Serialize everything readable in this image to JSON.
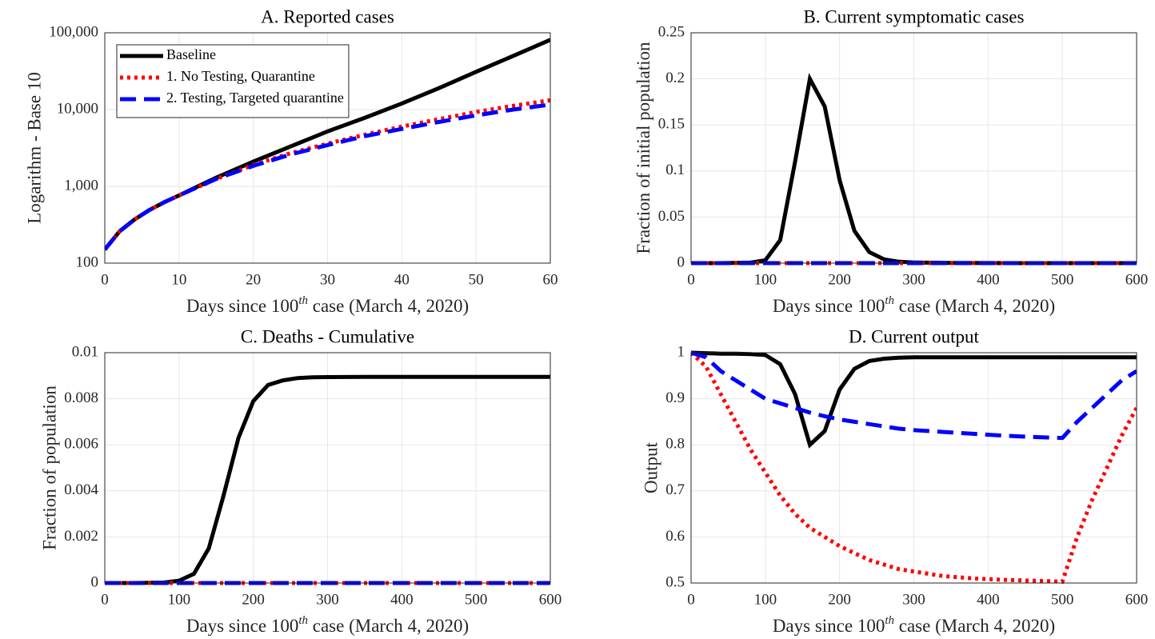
{
  "chart_data": [
    {
      "type": "line",
      "title": "A. Reported cases",
      "xlabel": [
        "Days since 100",
        "th",
        " case (March 4, 2020)"
      ],
      "ylabel": "Logarithm - Base 10",
      "x": [
        0,
        2,
        4,
        6,
        8,
        10,
        15,
        20,
        25,
        30,
        35,
        40,
        45,
        50,
        55,
        60
      ],
      "series": [
        {
          "name": "Baseline",
          "color": "#000000",
          "style": "solid",
          "values": [
            150,
            260,
            370,
            490,
            620,
            760,
            1300,
            2100,
            3300,
            5200,
            7800,
            12000,
            19000,
            31000,
            50000,
            81000
          ]
        },
        {
          "name": "1. No Testing, Quarantine",
          "color": "#ff0000",
          "style": "dotted",
          "values": [
            150,
            260,
            370,
            490,
            620,
            760,
            1250,
            1900,
            2700,
            3600,
            4700,
            6000,
            7500,
            9300,
            11200,
            13200
          ]
        },
        {
          "name": "2. Testing, Targeted quarantine",
          "color": "#0000ff",
          "style": "dashed",
          "values": [
            150,
            260,
            370,
            490,
            620,
            760,
            1250,
            1850,
            2600,
            3450,
            4500,
            5600,
            6900,
            8400,
            10000,
            11600
          ]
        }
      ],
      "xlim": [
        0,
        60
      ],
      "xticks": [
        0,
        10,
        20,
        30,
        40,
        50,
        60
      ],
      "ylim": [
        100,
        100000
      ],
      "yscale": "log",
      "yticks": [
        100,
        {
          "value": 1000,
          "label": "1,000"
        },
        {
          "value": 10000,
          "label": "10,000"
        },
        {
          "value": 100000,
          "label": "100,000"
        }
      ],
      "grid": true,
      "legend": "northwest"
    },
    {
      "type": "line",
      "title": "B. Current symptomatic cases",
      "xlabel": [
        "Days since 100",
        "th",
        " case (March 4, 2020)"
      ],
      "ylabel": "Fraction of initial population",
      "x": [
        0,
        40,
        80,
        100,
        120,
        140,
        160,
        180,
        200,
        220,
        240,
        260,
        280,
        300,
        350,
        400,
        450,
        500,
        550,
        600
      ],
      "series": [
        {
          "color": "#000000",
          "style": "solid",
          "values": [
            0,
            0,
            0.0005,
            0.003,
            0.025,
            0.11,
            0.2,
            0.17,
            0.09,
            0.035,
            0.012,
            0.004,
            0.0015,
            0.0006,
            0.0002,
            0.0001,
            0,
            0,
            0,
            0
          ]
        },
        {
          "color": "#ff0000",
          "style": "dotted",
          "values": [
            0,
            0,
            0,
            0,
            0,
            0,
            0,
            0,
            0,
            0,
            0,
            0,
            0,
            0,
            0,
            0,
            0,
            0,
            0,
            0
          ]
        },
        {
          "color": "#0000ff",
          "style": "dashed",
          "values": [
            0,
            0,
            0,
            0,
            0,
            0,
            0,
            0,
            0,
            0,
            0,
            0,
            0,
            0,
            0,
            0,
            0,
            0,
            0,
            0
          ]
        }
      ],
      "xlim": [
        0,
        600
      ],
      "xticks": [
        0,
        100,
        200,
        300,
        400,
        500,
        600
      ],
      "ylim": [
        0,
        0.25
      ],
      "yticks": [
        0,
        0.05,
        0.1,
        0.15,
        0.2,
        0.25
      ],
      "grid": true
    },
    {
      "type": "line",
      "title": "C. Deaths - Cumulative",
      "xlabel": [
        "Days since 100",
        "th",
        " case (March 4, 2020)"
      ],
      "ylabel": "Fraction of population",
      "x": [
        0,
        40,
        80,
        100,
        120,
        140,
        160,
        180,
        200,
        220,
        240,
        260,
        280,
        300,
        350,
        400,
        450,
        500,
        550,
        600
      ],
      "series": [
        {
          "color": "#000000",
          "style": "solid",
          "values": [
            0,
            0,
            2e-05,
            0.0001,
            0.0004,
            0.0015,
            0.0038,
            0.0063,
            0.0079,
            0.0086,
            0.0088,
            0.0089,
            0.00893,
            0.00894,
            0.00895,
            0.00895,
            0.00895,
            0.00895,
            0.00895,
            0.00895
          ]
        },
        {
          "color": "#ff0000",
          "style": "dotted",
          "values": [
            0,
            0,
            0,
            0,
            0,
            0,
            0,
            0,
            0,
            0,
            0,
            0,
            0,
            0,
            0,
            0,
            0,
            0,
            0,
            0
          ]
        },
        {
          "color": "#0000ff",
          "style": "dashed",
          "values": [
            0,
            0,
            0,
            0,
            0,
            0,
            0,
            0,
            0,
            0,
            0,
            0,
            0,
            0,
            0,
            0,
            0,
            0,
            0,
            0
          ]
        }
      ],
      "xlim": [
        0,
        600
      ],
      "xticks": [
        0,
        100,
        200,
        300,
        400,
        500,
        600
      ],
      "ylim": [
        0,
        0.01
      ],
      "yticks": [
        0,
        0.002,
        0.004,
        0.006,
        0.008,
        0.01
      ],
      "grid": true
    },
    {
      "type": "line",
      "title": "D. Current output",
      "xlabel": [
        "Days since 100",
        "th",
        " case (March 4, 2020)"
      ],
      "ylabel": "Output",
      "x": [
        0,
        20,
        40,
        60,
        80,
        100,
        120,
        140,
        160,
        180,
        200,
        220,
        240,
        260,
        280,
        300,
        340,
        380,
        420,
        460,
        500,
        520,
        540,
        560,
        580,
        600
      ],
      "series": [
        {
          "color": "#000000",
          "style": "solid",
          "values": [
            1,
            0.999,
            0.998,
            0.998,
            0.997,
            0.995,
            0.975,
            0.91,
            0.8,
            0.83,
            0.92,
            0.965,
            0.982,
            0.987,
            0.989,
            0.99,
            0.99,
            0.99,
            0.99,
            0.99,
            0.99,
            0.99,
            0.99,
            0.99,
            0.99,
            0.99
          ]
        },
        {
          "color": "#ff0000",
          "style": "dotted",
          "values": [
            1,
            0.97,
            0.91,
            0.85,
            0.79,
            0.74,
            0.69,
            0.65,
            0.62,
            0.6,
            0.58,
            0.565,
            0.55,
            0.54,
            0.53,
            0.525,
            0.515,
            0.51,
            0.507,
            0.505,
            0.503,
            0.6,
            0.68,
            0.75,
            0.82,
            0.88
          ]
        },
        {
          "color": "#0000ff",
          "style": "dashed",
          "values": [
            1,
            0.99,
            0.96,
            0.94,
            0.92,
            0.9,
            0.89,
            0.88,
            0.87,
            0.862,
            0.855,
            0.85,
            0.845,
            0.84,
            0.835,
            0.832,
            0.828,
            0.824,
            0.82,
            0.817,
            0.815,
            0.85,
            0.88,
            0.91,
            0.94,
            0.96
          ]
        }
      ],
      "xlim": [
        0,
        600
      ],
      "xticks": [
        0,
        100,
        200,
        300,
        400,
        500,
        600
      ],
      "ylim": [
        0.5,
        1
      ],
      "yticks": [
        0.5,
        0.6,
        0.7,
        0.8,
        0.9,
        1
      ],
      "grid": true
    }
  ]
}
